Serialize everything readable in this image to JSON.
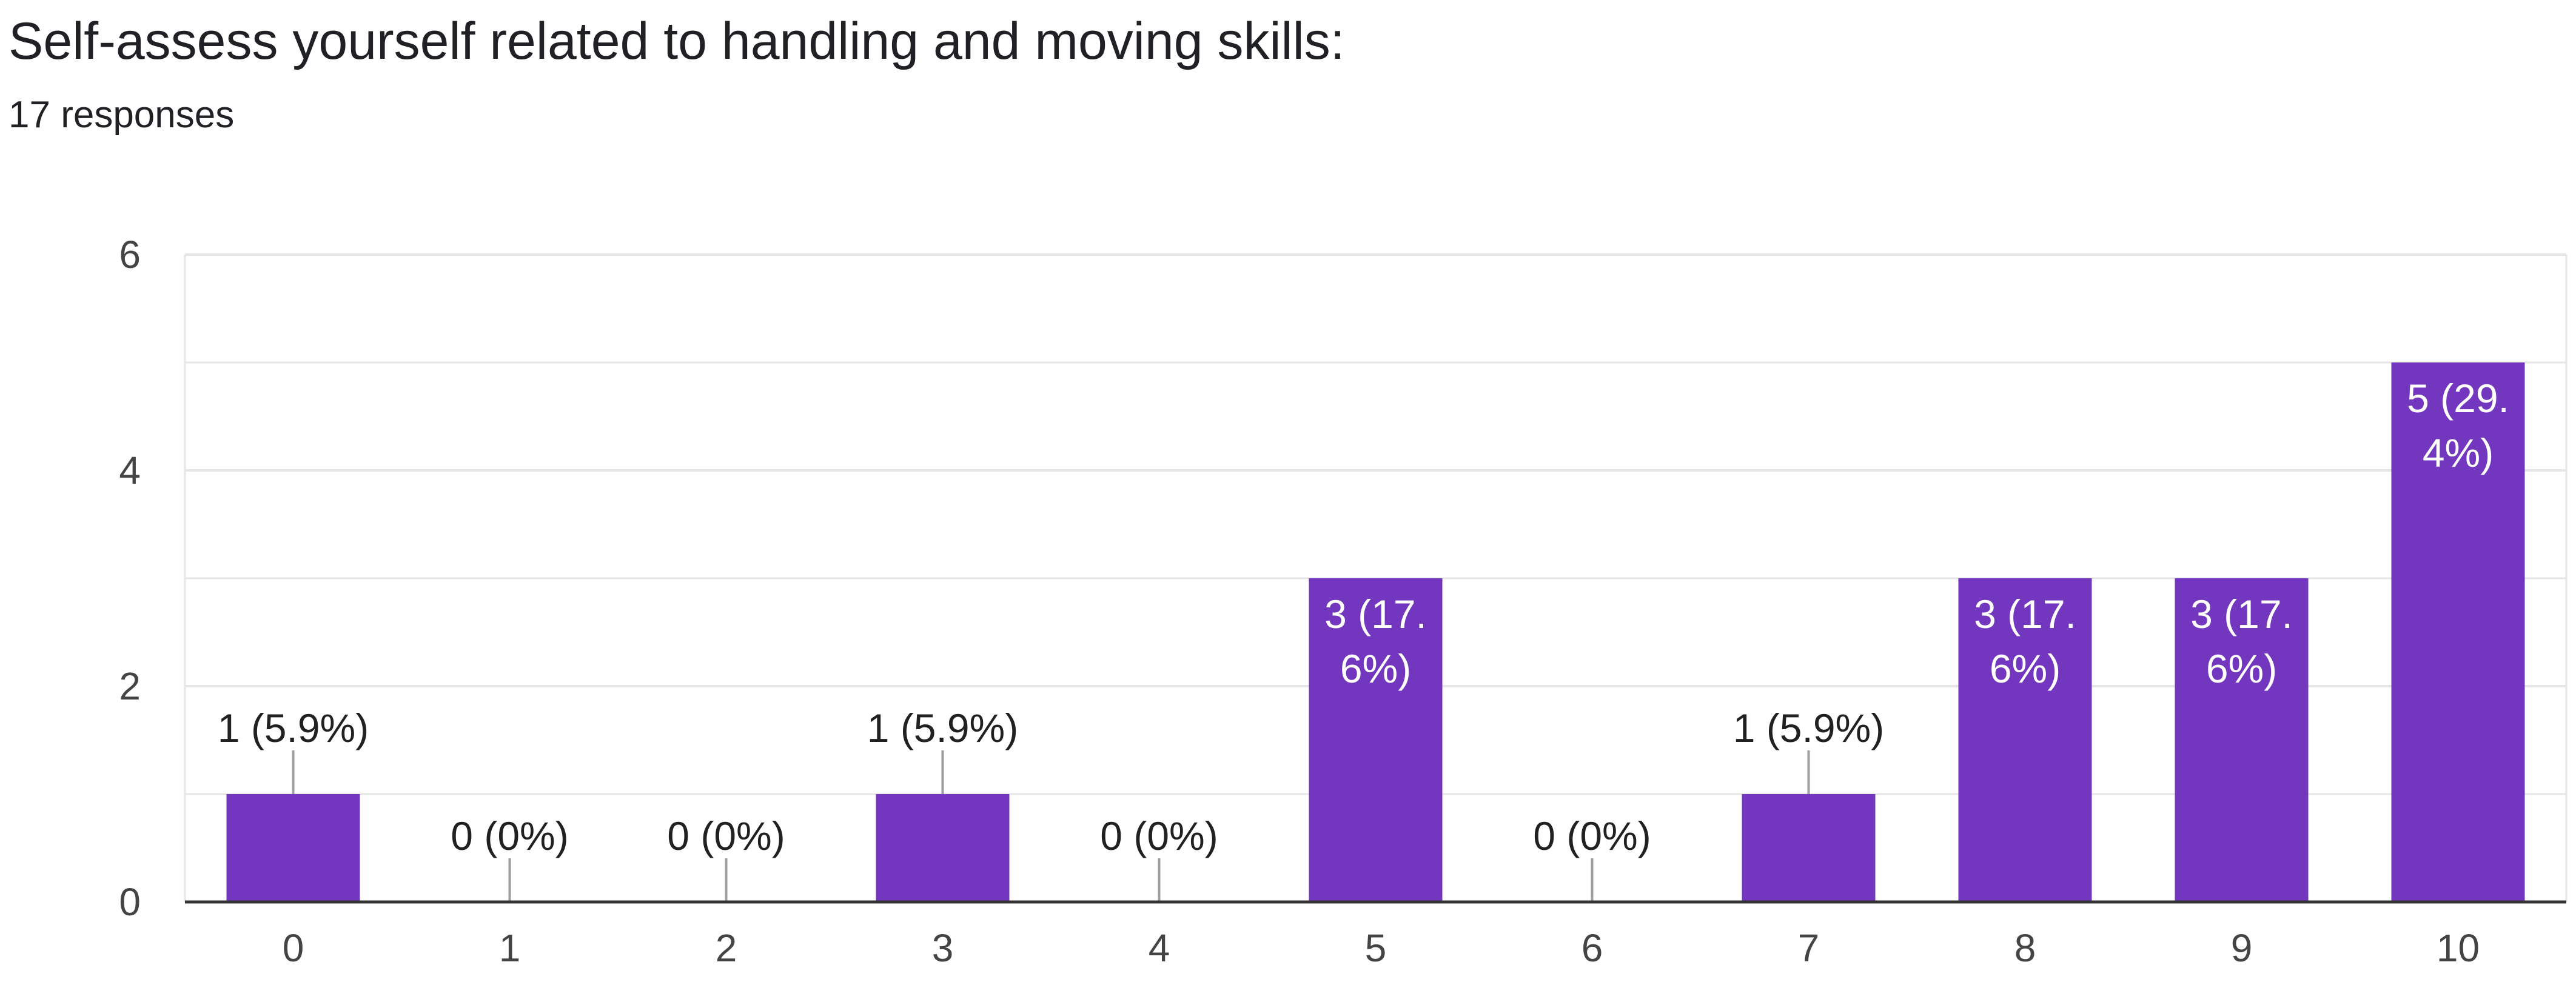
{
  "header": {
    "title": "Self-assess yourself related to  handling and moving skills:",
    "responses": "17 responses"
  },
  "colors": {
    "bar": "#7337bf",
    "gridline": "#e6e6e6",
    "axis": "#333333",
    "leader": "#9e9e9e"
  },
  "chart_data": {
    "type": "bar",
    "title": "Self-assess yourself related to  handling and moving skills:",
    "subtitle": "17 responses",
    "xlabel": "",
    "ylabel": "",
    "categories": [
      "0",
      "1",
      "2",
      "3",
      "4",
      "5",
      "6",
      "7",
      "8",
      "9",
      "10"
    ],
    "values": [
      1,
      0,
      0,
      1,
      0,
      3,
      0,
      1,
      3,
      3,
      5
    ],
    "data_labels": [
      "1 (5.9%)",
      "0 (0%)",
      "0 (0%)",
      "1 (5.9%)",
      "0 (0%)",
      "3 (17.\n6%)",
      "0 (0%)",
      "1 (5.9%)",
      "3 (17.\n6%)",
      "3 (17.\n6%)",
      "5 (29.\n4%)"
    ],
    "ylim": [
      0,
      6
    ],
    "yticks": [
      0,
      2,
      4,
      6
    ],
    "grid": true
  }
}
